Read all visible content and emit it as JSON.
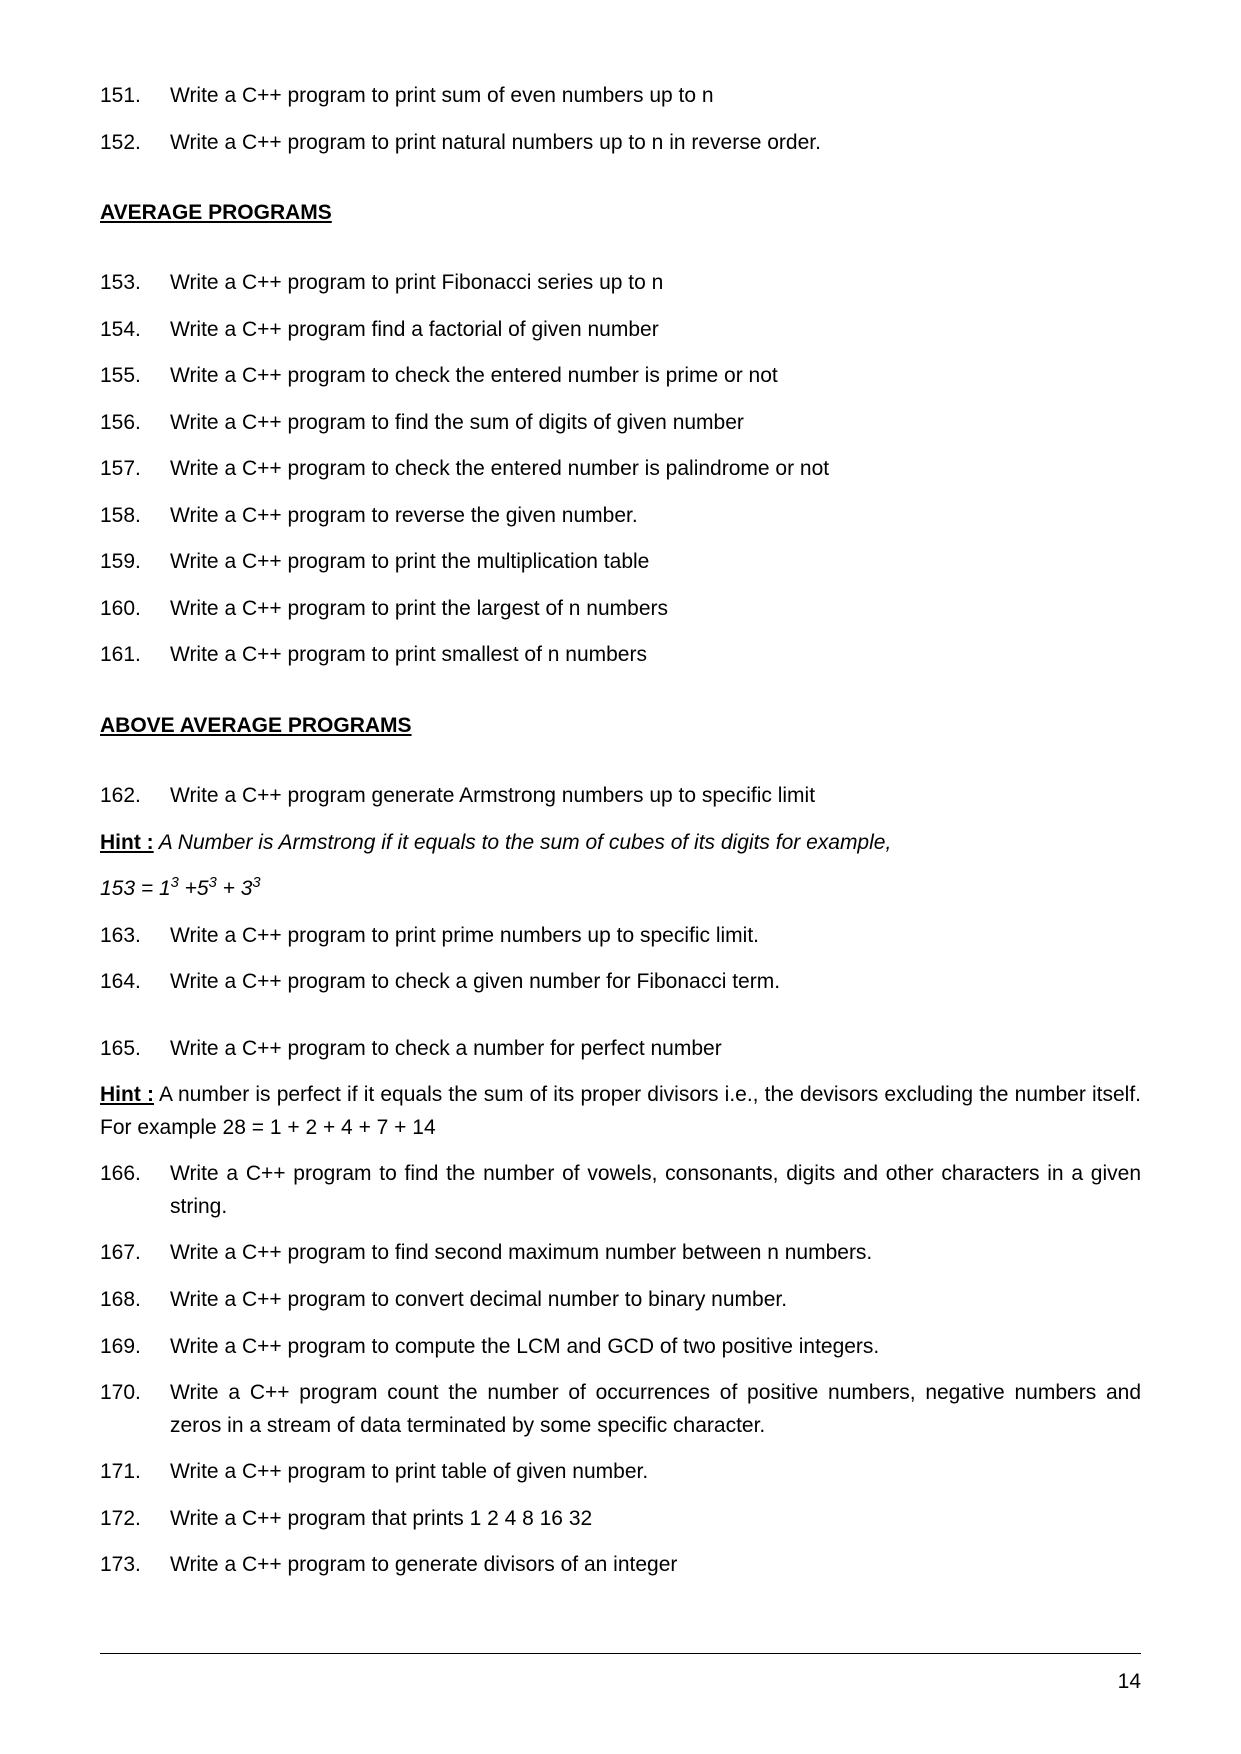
{
  "page_number": "14",
  "intro_items": [
    {
      "num": "151.",
      "text": "Write a C++ program to print sum of even numbers up to n"
    },
    {
      "num": "152.",
      "text": "Write a C++ program to print natural numbers up to n in reverse order."
    }
  ],
  "section_average": {
    "heading": "AVERAGE PROGRAMS",
    "items": [
      {
        "num": "153.",
        "text": "Write a C++ program to print Fibonacci series up to n"
      },
      {
        "num": "154.",
        "text": "Write a C++ program  find a factorial of given number"
      },
      {
        "num": "155.",
        "text": "Write a C++ program to check the entered number is prime or not"
      },
      {
        "num": "156.",
        "text": "Write a C++ program to find the sum of digits of given number"
      },
      {
        "num": "157.",
        "text": "Write a C++ program to check the entered number is palindrome or not"
      },
      {
        "num": "158.",
        "text": "Write a C++ program to reverse the given number."
      },
      {
        "num": "159.",
        "text": "Write a C++ program to print the multiplication table"
      },
      {
        "num": "160.",
        "text": "Write a C++ program to print the largest of n numbers"
      },
      {
        "num": "161.",
        "text": "Write a C++ program to print smallest of n numbers"
      }
    ]
  },
  "section_above": {
    "heading": "ABOVE AVERAGE PROGRAMS",
    "item_162": {
      "num": "162.",
      "text": "Write a C++ program generate Armstrong numbers up to specific limit"
    },
    "hint1_label": "Hint :",
    "hint1_text": " A Number is Armstrong if it equals to the sum of cubes of its digits for example,",
    "equation_parts": {
      "prefix": "153 = 1",
      "exp1": "3",
      "mid1": " +5",
      "exp2": "3",
      "mid2": " + 3",
      "exp3": "3"
    },
    "item_163": {
      "num": "163.",
      "text": "Write a C++ program to print prime numbers up to specific limit."
    },
    "item_164": {
      "num": "164.",
      "text": "Write a C++ program to check a given number for Fibonacci term."
    },
    "item_165": {
      "num": "165.",
      "text": "Write a C++ program to check a number for perfect number"
    },
    "hint2_label": "Hint :",
    "hint2_text": " A number is perfect if it equals the sum of its proper divisors i.e., the devisors excluding the number itself. For example 28 = 1 + 2 + 4 + 7 + 14",
    "item_166": {
      "num": "166.",
      "text_lead": "Write a C++ program to find the number of vowels, consonants, digits and other characters in a given string."
    },
    "items_167_173": [
      {
        "num": "167.",
        "text": "Write a C++ program to find second maximum number between n numbers."
      },
      {
        "num": "168.",
        "text": "Write a C++ program to convert decimal number to binary number."
      },
      {
        "num": "169.",
        "text": "Write a C++ program to compute the LCM and GCD of two positive integers."
      }
    ],
    "item_170": {
      "num": "170.",
      "text_lead": "Write a C++ program count the number of occurrences of positive numbers, negative numbers and zeros in a stream of data terminated by some specific character."
    },
    "items_171_173": [
      {
        "num": "171.",
        "text": "Write a C++ program to print table of given number."
      },
      {
        "num": "172.",
        "text": "Write a C++ program that prints 1 2 4 8 16 32"
      },
      {
        "num": "173.",
        "text": "Write a C++ program to generate divisors of an integer"
      }
    ]
  }
}
